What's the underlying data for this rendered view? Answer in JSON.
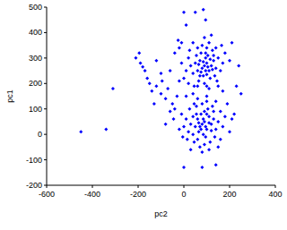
{
  "chart_data": {
    "type": "scatter",
    "x_label": "pc2",
    "y_label": "pc1",
    "color": "#0000ff",
    "marker": "diamond",
    "xlim": [
      -600,
      400
    ],
    "xticks": [
      -600,
      -400,
      -200,
      0,
      200,
      400
    ],
    "ylim": [
      -200,
      500
    ],
    "yticks": [
      -200,
      -100,
      0,
      100,
      200,
      300,
      400,
      500
    ],
    "x": [
      90,
      100,
      80,
      110,
      70,
      95,
      120,
      60,
      85,
      105,
      130,
      50,
      75,
      115,
      140,
      40,
      65,
      100,
      125,
      90,
      55,
      150,
      160,
      30,
      20,
      10,
      135,
      80,
      110,
      60,
      45,
      100,
      145,
      170,
      180,
      0,
      -10,
      25,
      95,
      85,
      105,
      75,
      115,
      65,
      125,
      95,
      70,
      100,
      130,
      140,
      40,
      90,
      120,
      -20,
      200,
      60,
      110,
      20,
      150,
      165,
      80,
      90,
      70,
      100,
      60,
      110,
      85,
      75,
      120,
      50,
      95,
      65,
      130,
      40,
      105,
      55,
      140,
      30,
      115,
      80,
      100,
      60,
      150,
      160,
      20,
      10,
      135,
      90,
      70,
      45,
      125,
      170,
      180,
      0,
      -10,
      25,
      100,
      85,
      95,
      75,
      110,
      65,
      120,
      90,
      55,
      130,
      40,
      80,
      110,
      150,
      -20,
      200,
      190,
      60,
      140,
      30,
      15,
      160,
      100,
      45,
      210,
      -5,
      -450,
      -340,
      -310,
      -210,
      -195,
      -190,
      -180,
      -170,
      -160,
      -140,
      -120,
      -100,
      -95,
      -80,
      -70,
      -60,
      -50,
      -45,
      -40,
      -30,
      -20,
      -60,
      -100,
      -130,
      -25,
      -10,
      0,
      10,
      50,
      85,
      95,
      250,
      240,
      210,
      220,
      230,
      0,
      80,
      140,
      -80,
      -120,
      -40,
      10,
      170,
      40,
      -150
    ],
    "values": [
      270,
      280,
      260,
      250,
      290,
      300,
      270,
      250,
      230,
      310,
      290,
      280,
      320,
      220,
      260,
      240,
      210,
      340,
      330,
      200,
      310,
      300,
      250,
      270,
      300,
      250,
      230,
      350,
      360,
      340,
      190,
      190,
      210,
      280,
      320,
      220,
      280,
      330,
      250,
      285,
      265,
      245,
      295,
      275,
      255,
      320,
      230,
      235,
      310,
      340,
      360,
      380,
      390,
      340,
      290,
      190,
      180,
      200,
      190,
      350,
      40,
      50,
      30,
      20,
      60,
      70,
      0,
      80,
      40,
      30,
      -10,
      10,
      60,
      70,
      100,
      110,
      20,
      40,
      -30,
      120,
      130,
      -20,
      50,
      90,
      10,
      60,
      -10,
      -40,
      -50,
      -30,
      110,
      30,
      70,
      30,
      80,
      100,
      80,
      60,
      30,
      20,
      45,
      45,
      15,
      90,
      80,
      90,
      0,
      -70,
      -60,
      -50,
      20,
      10,
      120,
      140,
      130,
      -60,
      -20,
      -20,
      150,
      120,
      60,
      -10,
      10,
      20,
      180,
      300,
      320,
      280,
      265,
      250,
      220,
      170,
      190,
      160,
      210,
      140,
      180,
      90,
      120,
      60,
      100,
      150,
      210,
      250,
      240,
      120,
      370,
      360,
      480,
      430,
      480,
      490,
      450,
      160,
      270,
      360,
      80,
      190,
      -130,
      -130,
      -120,
      40,
      290,
      320,
      150,
      170,
      160,
      200
    ]
  }
}
